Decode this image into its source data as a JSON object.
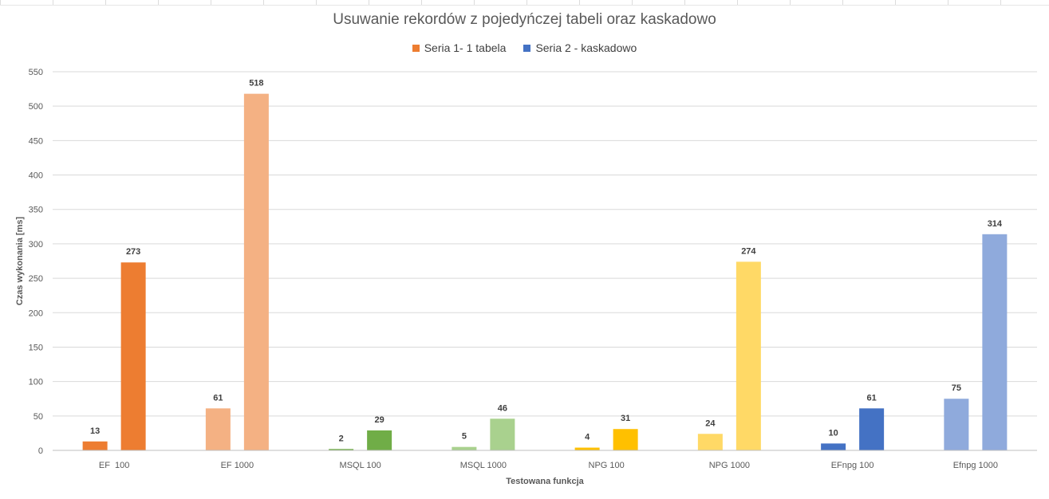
{
  "chart_data": {
    "type": "bar",
    "title": "Usuwanie rekordów z pojedyńczej tabeli oraz kaskadowo",
    "xlabel": "Testowana funkcja",
    "ylabel": "Czas wykonania [ms]",
    "ylim": [
      0,
      550
    ],
    "yticks": [
      "0",
      "50",
      "100",
      "150",
      "200",
      "250",
      "300",
      "350",
      "400",
      "450",
      "500",
      "550"
    ],
    "grid": true,
    "legend_position": "top",
    "categories": [
      "EF  100",
      "EF 1000",
      "MSQL 100",
      "MSQL 1000",
      "NPG 100",
      "NPG 1000",
      "EFnpg 100",
      "Efnpg 1000"
    ],
    "series": [
      {
        "name": "Seria 1- 1 tabela",
        "legend_color": "#ED7D31",
        "values": [
          13,
          61,
          2,
          5,
          4,
          24,
          10,
          75
        ]
      },
      {
        "name": "Seria 2 - kaskadowo",
        "legend_color": "#4472C4",
        "values": [
          273,
          518,
          29,
          46,
          31,
          274,
          61,
          314
        ]
      }
    ],
    "point_colors": [
      [
        "#ED7D31",
        "#F4B183",
        "#70AD47",
        "#A9D18E",
        "#FFC000",
        "#FFD966",
        "#4472C4",
        "#8FAADC"
      ],
      [
        "#ED7D31",
        "#F4B183",
        "#70AD47",
        "#A9D18E",
        "#FFC000",
        "#FFD966",
        "#4472C4",
        "#8FAADC"
      ]
    ]
  }
}
